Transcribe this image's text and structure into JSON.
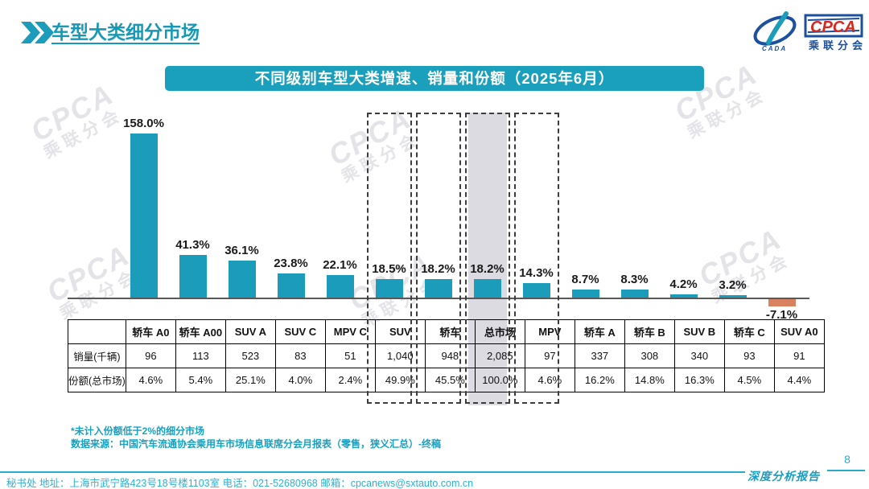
{
  "page": {
    "title": "车型大类细分市场",
    "page_number": "8",
    "report_label": "深度分析报告",
    "footer_address": "秘书处  地址：上海市武宁路423号18号楼1103室  电话：021-52680968  邮箱：cpcanews@sxtauto.com.cn",
    "watermark": {
      "line1": "CPCA",
      "line2": "乘联分会"
    }
  },
  "logo": {
    "cpca": "CPCA",
    "sub": "乘联分会",
    "cada": "CADA"
  },
  "notes": {
    "note1": "*未计入份额低于2%的细分市场",
    "note2": "数据来源：中国汽车流通协会乘用车市场信息联席分会月报表（零售，狭义汇总）-终稿"
  },
  "chart_data": {
    "type": "bar",
    "title": "不同级别车型大类增速、销量和份额（2025年6月）",
    "categories": [
      "轿车 A0",
      "轿车 A00",
      "SUV A",
      "SUV C",
      "MPV C",
      "SUV",
      "轿车",
      "总市场",
      "MPV",
      "轿车 A",
      "轿车 B",
      "SUV B",
      "轿车 C",
      "SUV A0"
    ],
    "series": [
      {
        "name": "同比增速",
        "values": [
          158.0,
          41.3,
          36.1,
          23.8,
          22.1,
          18.5,
          18.2,
          18.2,
          14.3,
          8.7,
          8.3,
          4.2,
          3.2,
          -7.1
        ]
      }
    ],
    "value_labels": [
      "158.0%",
      "41.3%",
      "36.1%",
      "23.8%",
      "22.1%",
      "18.5%",
      "18.2%",
      "18.2%",
      "14.3%",
      "8.7%",
      "8.3%",
      "4.2%",
      "3.2%",
      "-7.1%"
    ],
    "table": {
      "row_labels": [
        "销量(千辆)",
        "份额(总市场)"
      ],
      "sales": [
        "96",
        "113",
        "523",
        "83",
        "51",
        "1,040",
        "948",
        "2,085",
        "97",
        "337",
        "308",
        "340",
        "93",
        "91"
      ],
      "share": [
        "4.6%",
        "5.4%",
        "25.1%",
        "4.0%",
        "2.4%",
        "49.9%",
        "45.5%",
        "100.0%",
        "4.6%",
        "16.2%",
        "14.8%",
        "16.3%",
        "4.5%",
        "4.4%"
      ]
    },
    "highlight_dashed": [
      "SUV",
      "轿车",
      "总市场",
      "MPV"
    ],
    "highlight_gray": "总市场",
    "bar_color": "#1a9cba",
    "negative_bar_color": "#d9825f",
    "ylim": [
      -20,
      180
    ],
    "grid": false,
    "legend": false
  }
}
